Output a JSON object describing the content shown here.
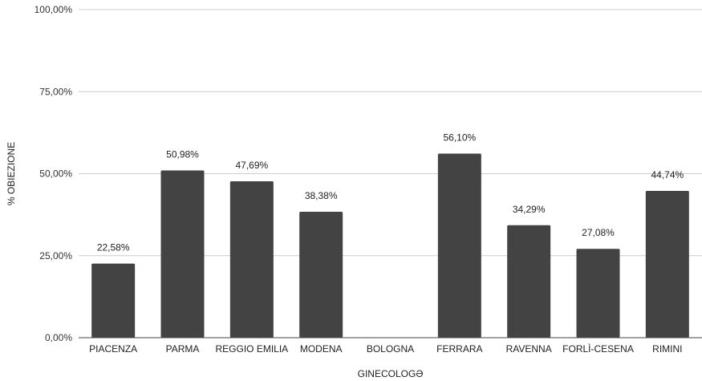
{
  "chart_data": {
    "type": "bar",
    "title": "",
    "xlabel": "GINECOLOGƏ",
    "ylabel": "% OBIEZIONE",
    "ylim": [
      0,
      100
    ],
    "yticks": [
      0,
      25,
      50,
      75,
      100
    ],
    "ytick_labels": [
      "0,00%",
      "25,00%",
      "50,00%",
      "75,00%",
      "100,00%"
    ],
    "categories": [
      "PIACENZA",
      "PARMA",
      "REGGIO EMILIA",
      "MODENA",
      "BOLOGNA",
      "FERRARA",
      "RAVENNA",
      "FORLÌ-CESENA",
      "RIMINI"
    ],
    "values": [
      22.58,
      50.98,
      47.69,
      38.38,
      null,
      56.1,
      34.29,
      27.08,
      44.74
    ],
    "value_labels": [
      "22,58%",
      "50,98%",
      "47,69%",
      "38,38%",
      "",
      "56,10%",
      "34,29%",
      "27,08%",
      "44,74%"
    ],
    "bar_color": "#434343",
    "grid": true,
    "legend": "none"
  }
}
